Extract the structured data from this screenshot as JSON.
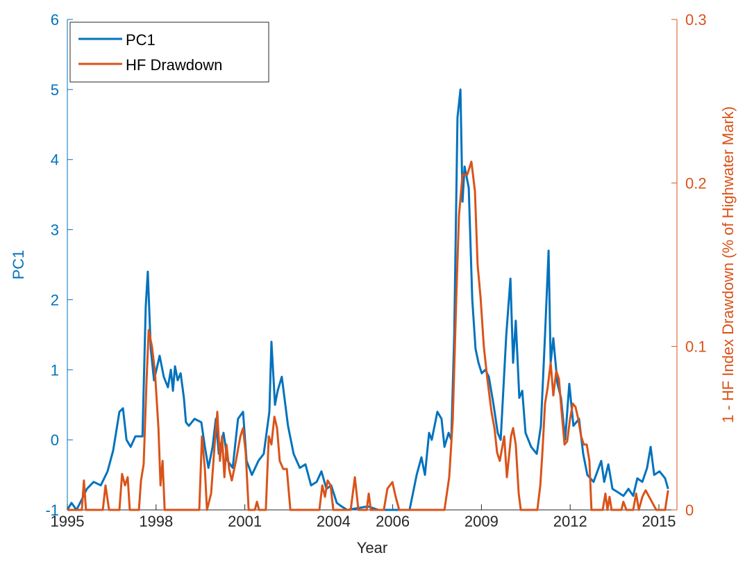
{
  "chart_data": {
    "type": "line",
    "x_label": "Year",
    "y_label": "PC1",
    "y2_label": "1 - HF Index Drawdown (% of Highwater Mark)",
    "xlim": [
      1995,
      2015.61
    ],
    "xticks": [
      1995,
      1998,
      2001,
      2004,
      2006,
      2009,
      2012,
      2015
    ],
    "ylim": [
      -1,
      6
    ],
    "yticks": [
      -1,
      0,
      1,
      2,
      3,
      4,
      5,
      6
    ],
    "y2lim": [
      0,
      0.3
    ],
    "y2ticks": [
      0,
      0.1,
      0.2,
      0.3
    ],
    "legend": "upper left",
    "series": [
      {
        "name": "PC1",
        "color": "#0072BD",
        "x": [
          1995.0,
          1995.14,
          1995.31,
          1995.49,
          1995.66,
          1995.89,
          1996.13,
          1996.36,
          1996.55,
          1996.76,
          1996.88,
          1997.0,
          1997.14,
          1997.3,
          1997.54,
          1997.65,
          1997.72,
          1997.82,
          1997.93,
          1998.12,
          1998.26,
          1998.4,
          1998.5,
          1998.57,
          1998.64,
          1998.73,
          1998.83,
          1998.94,
          1999.01,
          1999.11,
          1999.3,
          1999.53,
          1999.65,
          1999.77,
          1999.91,
          2000.02,
          2000.12,
          2000.28,
          2000.42,
          2000.59,
          2000.77,
          2000.94,
          2001.06,
          2001.24,
          2001.46,
          2001.64,
          2001.83,
          2001.9,
          2002.02,
          2002.11,
          2002.25,
          2002.46,
          2002.65,
          2002.86,
          2003.05,
          2003.24,
          2003.43,
          2003.59,
          2003.76,
          2003.92,
          2004.11,
          2004.27,
          2004.46,
          2005.16,
          2005.52,
          2006.57,
          2006.81,
          2006.97,
          2007.09,
          2007.23,
          2007.32,
          2007.51,
          2007.65,
          2007.75,
          2007.89,
          2007.98,
          2008.08,
          2008.19,
          2008.29,
          2008.36,
          2008.43,
          2008.57,
          2008.69,
          2008.8,
          2008.9,
          2009.01,
          2009.13,
          2009.25,
          2009.41,
          2009.55,
          2009.65,
          2009.84,
          2009.98,
          2010.07,
          2010.16,
          2010.28,
          2010.38,
          2010.49,
          2010.68,
          2010.87,
          2011.01,
          2011.15,
          2011.27,
          2011.34,
          2011.43,
          2011.57,
          2011.69,
          2011.83,
          2011.97,
          2012.11,
          2012.3,
          2012.44,
          2012.58,
          2012.79,
          2013.05,
          2013.15,
          2013.29,
          2013.43,
          2013.62,
          2013.8,
          2013.97,
          2014.13,
          2014.27,
          2014.44,
          2014.6,
          2014.72,
          2014.84,
          2015.02,
          2015.21,
          2015.31
        ],
        "values": [
          -1,
          -0.9,
          -1,
          -0.85,
          -0.7,
          -0.6,
          -0.65,
          -0.45,
          -0.15,
          0.4,
          0.45,
          0.0,
          -0.1,
          0.05,
          0.05,
          1.9,
          2.4,
          1.3,
          0.85,
          1.2,
          0.9,
          0.75,
          1.0,
          0.7,
          1.05,
          0.85,
          0.95,
          0.6,
          0.25,
          0.2,
          0.3,
          0.25,
          -0.1,
          -0.4,
          -0.1,
          0.3,
          -0.2,
          0.1,
          -0.3,
          -0.4,
          0.3,
          0.4,
          -0.3,
          -0.5,
          -0.3,
          -0.2,
          0.4,
          1.4,
          0.5,
          0.7,
          0.9,
          0.2,
          -0.2,
          -0.4,
          -0.35,
          -0.65,
          -0.6,
          -0.45,
          -0.7,
          -0.65,
          -0.9,
          -0.95,
          -1,
          -0.95,
          -1,
          -1,
          -0.5,
          -0.25,
          -0.5,
          0.1,
          0.0,
          0.4,
          0.3,
          -0.1,
          0.1,
          0.0,
          1.5,
          4.6,
          5.0,
          3.4,
          3.9,
          3.6,
          2.0,
          1.3,
          1.1,
          0.95,
          1.0,
          0.9,
          0.5,
          0.1,
          0.0,
          1.5,
          2.3,
          1.1,
          1.7,
          0.6,
          0.7,
          0.1,
          -0.1,
          -0.2,
          0.2,
          1.5,
          2.7,
          1.1,
          1.45,
          0.8,
          0.6,
          0.0,
          0.8,
          0.2,
          0.3,
          -0.2,
          -0.5,
          -0.6,
          -0.3,
          -0.6,
          -0.35,
          -0.7,
          -0.75,
          -0.8,
          -0.7,
          -0.8,
          -0.55,
          -0.6,
          -0.4,
          -0.1,
          -0.5,
          -0.45,
          -0.55,
          -0.7
        ]
      },
      {
        "name": "HF Drawdown",
        "color": "#D95319",
        "axis": "y2",
        "x": [
          1995.0,
          1995.49,
          1995.56,
          1995.63,
          1996.2,
          1996.29,
          1996.41,
          1996.76,
          1996.85,
          1996.95,
          1997.04,
          1997.11,
          1997.42,
          1997.49,
          1997.58,
          1997.68,
          1997.75,
          1997.86,
          1997.96,
          1998.08,
          1998.15,
          1998.22,
          1998.29,
          1999.46,
          1999.55,
          1999.65,
          1999.72,
          1999.86,
          1999.98,
          2000.07,
          2000.16,
          2000.23,
          2000.31,
          2000.38,
          2000.47,
          2000.56,
          2000.7,
          2000.85,
          2000.94,
          2001.03,
          2001.13,
          2001.34,
          2001.41,
          2001.48,
          2001.71,
          2001.81,
          2001.9,
          2002.0,
          2002.09,
          2002.18,
          2002.3,
          2002.42,
          2002.54,
          2003.52,
          2003.62,
          2003.71,
          2003.8,
          2003.9,
          2003.99,
          2004.58,
          2004.72,
          2004.84,
          2005.12,
          2005.19,
          2005.26,
          2005.7,
          2005.82,
          2005.99,
          2006.1,
          2006.22,
          2007.75,
          2007.91,
          2008.03,
          2008.15,
          2008.24,
          2008.36,
          2008.52,
          2008.66,
          2008.78,
          2008.87,
          2008.97,
          2009.08,
          2009.2,
          2009.34,
          2009.44,
          2009.53,
          2009.62,
          2009.77,
          2009.86,
          2010.0,
          2010.07,
          2010.16,
          2010.26,
          2010.33,
          2010.89,
          2010.99,
          2011.06,
          2011.15,
          2011.24,
          2011.34,
          2011.43,
          2011.53,
          2011.62,
          2011.71,
          2011.81,
          2011.9,
          2011.99,
          2012.09,
          2012.18,
          2012.28,
          2012.37,
          2012.46,
          2012.56,
          2012.65,
          2012.72,
          2013.1,
          2013.19,
          2013.26,
          2013.33,
          2013.4,
          2013.73,
          2013.8,
          2013.9,
          2014.13,
          2014.23,
          2014.32,
          2014.44,
          2014.55,
          2014.67,
          2014.79,
          2014.91,
          2015.21,
          2015.31
        ],
        "values": [
          0,
          0,
          0.018,
          0,
          0,
          0.015,
          0,
          0,
          0.022,
          0.015,
          0.02,
          0,
          0,
          0.018,
          0.028,
          0.08,
          0.11,
          0.1,
          0.085,
          0.05,
          0.015,
          0.03,
          0,
          0,
          0.045,
          0.025,
          0,
          0.01,
          0.04,
          0.06,
          0.03,
          0.045,
          0.02,
          0.04,
          0.025,
          0.018,
          0.03,
          0.045,
          0.05,
          0.035,
          0,
          0,
          0.005,
          0,
          0,
          0.045,
          0.04,
          0.057,
          0.05,
          0.03,
          0.025,
          0.025,
          0,
          0,
          0.015,
          0.008,
          0.018,
          0.015,
          0,
          0,
          0.02,
          0,
          0,
          0.01,
          0,
          0,
          0.013,
          0.017,
          0.008,
          0,
          0,
          0.02,
          0.055,
          0.13,
          0.18,
          0.205,
          0.205,
          0.213,
          0.195,
          0.15,
          0.13,
          0.1,
          0.08,
          0.06,
          0.05,
          0.035,
          0.03,
          0.045,
          0.02,
          0.045,
          0.05,
          0.04,
          0.01,
          0,
          0,
          0.015,
          0.035,
          0.065,
          0.075,
          0.09,
          0.07,
          0.085,
          0.08,
          0.06,
          0.04,
          0.042,
          0.055,
          0.065,
          0.063,
          0.055,
          0.045,
          0.04,
          0.04,
          0.03,
          0,
          0,
          0.01,
          0,
          0.008,
          0,
          0,
          0.005,
          0,
          0,
          0.01,
          0,
          0.008,
          0.012,
          0.008,
          0.004,
          0,
          0,
          0.012
        ]
      }
    ]
  }
}
